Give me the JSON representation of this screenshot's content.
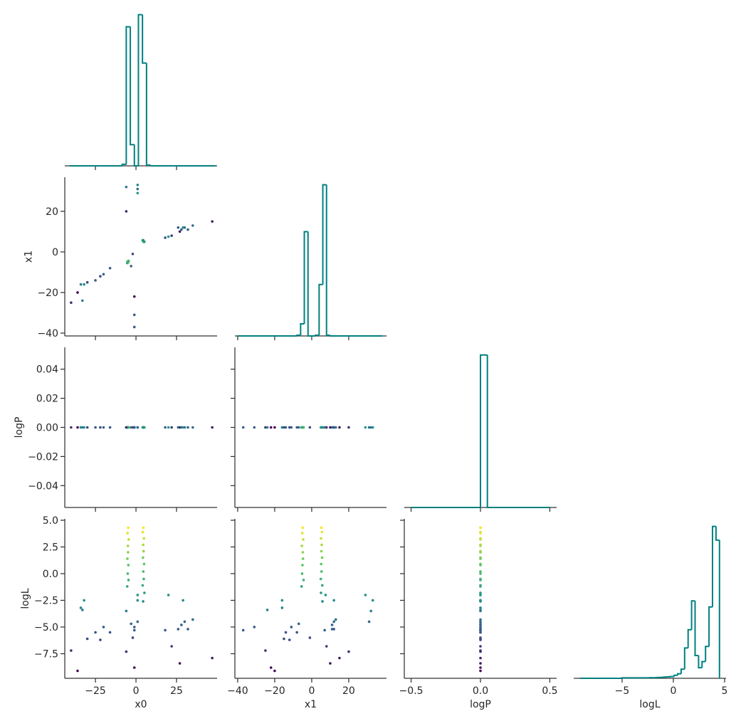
{
  "chart_data": [
    {
      "type": "histogram",
      "color": "#008080",
      "bins": [
        -41,
        -38.5,
        -36,
        -33.5,
        -31,
        -28.5,
        -26,
        -23.5,
        -21,
        -18.5,
        -16,
        -13.5,
        -11,
        -8.5,
        -6,
        -3.5,
        -1,
        1.5,
        4,
        6.5,
        9,
        11.5,
        14,
        16.5,
        19,
        21.5,
        24,
        26.5,
        29,
        31.5,
        34,
        36.5,
        39,
        41.5,
        44,
        46.5,
        49
      ],
      "values": [
        0,
        0,
        0,
        0,
        0,
        0,
        0,
        0,
        0,
        0,
        0,
        0,
        0,
        0.01,
        0.92,
        0.14,
        0,
        1.0,
        0.68,
        0.005,
        0,
        0,
        0,
        0,
        0,
        0,
        0,
        0,
        0,
        0,
        0,
        0,
        0,
        0,
        0,
        0
      ],
      "xlim": [
        -43.9,
        50
      ],
      "ylim": [
        0,
        1.05
      ],
      "xticks": [
        -25,
        0,
        25
      ],
      "xtick_labels": false
    },
    {
      "type": "scatter",
      "cmap": [
        "#440154",
        "#3b528b",
        "#21918c",
        "#5ec962",
        "#fde725"
      ],
      "clim": [
        -9.1,
        4.4
      ],
      "x": [
        -4.8,
        -5.2,
        -4.5,
        -5.0,
        -4.9,
        -5.3,
        -4.7,
        -5.1,
        -4.6,
        -5.4,
        4.6,
        4.2,
        4.9,
        4.4,
        4.7,
        4.3,
        5.0,
        4.5,
        4.8,
        4.1,
        5.2,
        4.4,
        -40,
        -36,
        -34,
        -33,
        -32,
        -30,
        -25,
        -22,
        -20,
        -16,
        -6,
        -6,
        -1,
        1,
        1,
        -1,
        -1,
        1,
        -2,
        -3,
        18,
        20,
        22,
        27,
        28,
        30,
        32,
        35,
        47,
        29,
        26
      ],
      "y": [
        -4.9,
        -5.1,
        -4.6,
        -5.3,
        -4.8,
        -4.7,
        -5.0,
        -5.2,
        -4.4,
        -5.5,
        5.2,
        5.5,
        5.0,
        5.4,
        5.2,
        5.6,
        5.1,
        5.3,
        4.9,
        5.7,
        5.0,
        5.8,
        -25,
        -20,
        -16,
        -24,
        -16,
        -15,
        -14,
        -12,
        -11,
        -8,
        32,
        20,
        -22,
        29,
        33,
        -31,
        -37,
        31,
        -1,
        -7,
        7,
        7.5,
        8,
        10,
        11,
        12,
        11,
        13,
        15,
        12,
        12
      ],
      "c": [
        4.3,
        3.8,
        3.2,
        2.6,
        2.0,
        1.4,
        0.8,
        0.0,
        -0.6,
        -1.2,
        4.3,
        3.9,
        3.3,
        2.7,
        2.1,
        1.5,
        0.9,
        0.2,
        -0.5,
        -1.1,
        -1.8,
        -2.6,
        -7.2,
        -9.1,
        -3.2,
        -3.4,
        -2.5,
        -6.1,
        -5.5,
        -6.2,
        -5.0,
        -5.5,
        -3.5,
        -7.3,
        -8.8,
        -2.0,
        -2.5,
        -5.0,
        -5.3,
        -4.5,
        -6.0,
        -4.7,
        -5.3,
        -2.0,
        -6.8,
        -8.4,
        -4.8,
        -4.5,
        -5.2,
        -4.3,
        -7.9,
        -2.5,
        -5.2
      ],
      "xlim": [
        -43.9,
        50
      ],
      "ylim": [
        -41.4,
        36.8
      ],
      "xticks": [
        -25,
        0,
        25
      ],
      "xtick_labels": false,
      "yticks": [
        20,
        0,
        {
          "value": -20,
          "label": "−20"
        },
        {
          "value": -40,
          "label": "−40"
        }
      ],
      "ytick_labels": true,
      "ylabel": "x1"
    },
    {
      "type": "histogram",
      "color": "#008080",
      "bins": [
        -40,
        -38,
        -36,
        -34,
        -32,
        -30,
        -28,
        -26,
        -24,
        -22,
        -20,
        -18,
        -16,
        -14,
        -12,
        -10,
        -8,
        -6,
        -4,
        -2,
        0,
        2,
        4,
        6,
        8,
        10,
        12,
        14,
        16,
        18,
        20,
        22,
        24,
        26,
        28,
        30,
        32,
        34,
        36,
        38
      ],
      "values": [
        0,
        0,
        0,
        0,
        0,
        0,
        0,
        0,
        0,
        0,
        0,
        0,
        0,
        0,
        0,
        0,
        0.005,
        0.08,
        0.69,
        0,
        0,
        0.005,
        0.34,
        1.0,
        0.005,
        0,
        0,
        0,
        0,
        0,
        0,
        0,
        0,
        0,
        0,
        0,
        0,
        0,
        0
      ],
      "xlim": [
        -41.5,
        40.4
      ],
      "ylim": [
        0,
        1.05
      ],
      "xticks": [
        -40,
        -20,
        0,
        20
      ],
      "xtick_labels": false
    },
    {
      "type": "scatter",
      "cmap": [
        "#440154",
        "#3b528b",
        "#21918c",
        "#5ec962",
        "#fde725"
      ],
      "clim": [
        -9.1,
        4.4
      ],
      "x": [
        -4.8,
        -5.2,
        -4.5,
        -5.0,
        -4.9,
        -5.3,
        -4.7,
        -5.1,
        -4.6,
        -5.4,
        4.6,
        4.2,
        4.9,
        4.4,
        4.7,
        4.3,
        5.0,
        4.5,
        4.8,
        4.1,
        5.2,
        4.4,
        -40,
        -36,
        -34,
        -33,
        -32,
        -30,
        -25,
        -22,
        -20,
        -16,
        -6,
        -6,
        -1,
        1,
        1,
        -1,
        -1,
        1,
        -2,
        -3,
        18,
        20,
        22,
        27,
        28,
        30,
        32,
        35,
        47,
        29,
        26
      ],
      "y": [
        0,
        0,
        0,
        0,
        0,
        0,
        0,
        0,
        0,
        0,
        0,
        0,
        0,
        0,
        0,
        0,
        0,
        0,
        0,
        0,
        0,
        0,
        0,
        0,
        0,
        0,
        0,
        0,
        0,
        0,
        0,
        0,
        0,
        0,
        0,
        0,
        0,
        0,
        0,
        0,
        0,
        0,
        0,
        0,
        0,
        0,
        0,
        0,
        0,
        0,
        0,
        0,
        0
      ],
      "c": [
        4.3,
        3.8,
        3.2,
        2.6,
        2.0,
        1.4,
        0.8,
        0.0,
        -0.6,
        -1.2,
        4.3,
        3.9,
        3.3,
        2.7,
        2.1,
        1.5,
        0.9,
        0.2,
        -0.5,
        -1.1,
        -1.8,
        -2.6,
        -7.2,
        -9.1,
        -3.2,
        -3.4,
        -2.5,
        -6.1,
        -5.5,
        -6.2,
        -5.0,
        -5.5,
        -3.5,
        -7.3,
        -8.8,
        -2.0,
        -2.5,
        -5.0,
        -5.3,
        -4.5,
        -6.0,
        -4.7,
        -5.3,
        -2.0,
        -6.8,
        -8.4,
        -4.8,
        -4.5,
        -5.2,
        -4.3,
        -7.9,
        -2.5,
        -5.2
      ],
      "xlim": [
        -43.9,
        50
      ],
      "ylim": [
        -0.055,
        0.055
      ],
      "xticks": [
        -25,
        0,
        25
      ],
      "xtick_labels": false,
      "yticks": [
        0.04,
        0.02,
        {
          "value": 0,
          "label": "0.00"
        },
        {
          "value": -0.02,
          "label": "−0.02"
        },
        {
          "value": -0.04,
          "label": "−0.04"
        }
      ],
      "ytick_labels": true,
      "ylabel": "logP"
    },
    {
      "type": "scatter",
      "cmap": [
        "#440154",
        "#3b528b",
        "#21918c",
        "#5ec962",
        "#fde725"
      ],
      "clim": [
        -9.1,
        4.4
      ],
      "x": [
        -4.9,
        -5.1,
        -4.6,
        -5.3,
        -4.8,
        -4.7,
        -5.0,
        -5.2,
        -4.4,
        -5.5,
        5.2,
        5.5,
        5.0,
        5.4,
        5.2,
        5.6,
        5.1,
        5.3,
        4.9,
        5.7,
        5.0,
        5.8,
        -25,
        -20,
        -16,
        -24,
        -16,
        -15,
        -14,
        -12,
        -11,
        -8,
        32,
        20,
        -22,
        29,
        33,
        -31,
        -37,
        31,
        -1,
        -7,
        7,
        7.5,
        8,
        10,
        11,
        12,
        11,
        13,
        15,
        12,
        12
      ],
      "y": [
        0,
        0,
        0,
        0,
        0,
        0,
        0,
        0,
        0,
        0,
        0,
        0,
        0,
        0,
        0,
        0,
        0,
        0,
        0,
        0,
        0,
        0,
        0,
        0,
        0,
        0,
        0,
        0,
        0,
        0,
        0,
        0,
        0,
        0,
        0,
        0,
        0,
        0,
        0,
        0,
        0,
        0,
        0,
        0,
        0,
        0,
        0,
        0,
        0,
        0,
        0,
        0,
        0
      ],
      "c": [
        4.3,
        3.8,
        3.2,
        2.6,
        2.0,
        1.4,
        0.8,
        0.0,
        -0.6,
        -1.2,
        4.3,
        3.9,
        3.3,
        2.7,
        2.1,
        1.5,
        0.9,
        0.2,
        -0.5,
        -1.1,
        -1.8,
        -2.6,
        -7.2,
        -9.1,
        -3.2,
        -3.4,
        -2.5,
        -6.1,
        -5.5,
        -6.2,
        -5.0,
        -5.5,
        -3.5,
        -7.3,
        -8.8,
        -2.0,
        -2.5,
        -5.0,
        -5.3,
        -4.5,
        -6.0,
        -4.7,
        -5.3,
        -2.0,
        -6.8,
        -8.4,
        -4.8,
        -4.5,
        -5.2,
        -4.3,
        -7.9,
        -2.5,
        -5.2
      ],
      "xlim": [
        -41.5,
        40.4
      ],
      "ylim": [
        -0.055,
        0.055
      ],
      "xticks": [
        -40,
        -20,
        0,
        20
      ],
      "xtick_labels": false,
      "yticks": [
        0.04,
        0.02,
        0,
        -0.02,
        -0.04
      ],
      "ytick_labels": false
    },
    {
      "type": "histogram",
      "color": "#008080",
      "bins": [
        -0.5,
        -0.45,
        -0.4,
        -0.35,
        -0.3,
        -0.25,
        -0.2,
        -0.15,
        -0.1,
        -0.05,
        0,
        0.05,
        0.1,
        0.15,
        0.2,
        0.25,
        0.3,
        0.35,
        0.4,
        0.45,
        0.5
      ],
      "values": [
        0,
        0,
        0,
        0,
        0,
        0,
        0,
        0,
        0,
        0,
        1.0,
        0,
        0,
        0,
        0,
        0,
        0,
        0,
        0,
        0
      ],
      "xlim": [
        -0.549,
        0.549
      ],
      "ylim": [
        0,
        1.05
      ],
      "xticks": [
        -0.5,
        0,
        0.5
      ],
      "xtick_labels": false
    },
    {
      "type": "scatter",
      "cmap": [
        "#440154",
        "#3b528b",
        "#21918c",
        "#5ec962",
        "#fde725"
      ],
      "clim": [
        -9.1,
        4.4
      ],
      "color_by": "y",
      "x": [
        -4.8,
        -5.2,
        -4.5,
        -5.0,
        -4.9,
        -5.3,
        -4.7,
        -5.1,
        -4.6,
        -5.4,
        4.6,
        4.2,
        4.9,
        4.4,
        4.7,
        4.3,
        5.0,
        4.5,
        4.8,
        4.1,
        5.2,
        4.4,
        -40,
        -36,
        -34,
        -33,
        -32,
        -30,
        -25,
        -22,
        -20,
        -16,
        -6,
        -6,
        -1,
        1,
        1,
        -1,
        -1,
        1,
        -2,
        -3,
        18,
        20,
        22,
        27,
        28,
        30,
        32,
        35,
        47,
        29,
        26
      ],
      "y": [
        4.3,
        3.8,
        3.2,
        2.6,
        2.0,
        1.4,
        0.8,
        0.0,
        -0.6,
        -1.2,
        4.3,
        3.9,
        3.3,
        2.7,
        2.1,
        1.5,
        0.9,
        0.2,
        -0.5,
        -1.1,
        -1.8,
        -2.6,
        -7.2,
        -9.1,
        -3.2,
        -3.4,
        -2.5,
        -6.1,
        -5.5,
        -6.2,
        -5.0,
        -5.5,
        -3.5,
        -7.3,
        -8.8,
        -2.0,
        -2.5,
        -5.0,
        -5.3,
        -4.5,
        -6.0,
        -4.7,
        -5.3,
        -2.0,
        -6.8,
        -8.4,
        -4.8,
        -4.5,
        -5.2,
        -4.3,
        -7.9,
        -2.5,
        -5.2
      ],
      "xlim": [
        -43.9,
        50
      ],
      "ylim": [
        -9.8,
        5.13
      ],
      "xticks": [
        {
          "value": -25,
          "label": "−25"
        },
        0,
        25
      ],
      "xtick_labels": true,
      "yticks": [
        {
          "value": 5,
          "label": "5.0"
        },
        2.5,
        {
          "value": 0,
          "label": "0.0"
        },
        {
          "value": -2.5,
          "label": "−2.5"
        },
        {
          "value": -5,
          "label": "−5.0"
        },
        {
          "value": -7.5,
          "label": "−7.5"
        }
      ],
      "ytick_labels": true,
      "xlabel": "x0",
      "ylabel": "logL"
    },
    {
      "type": "scatter",
      "cmap": [
        "#440154",
        "#3b528b",
        "#21918c",
        "#5ec962",
        "#fde725"
      ],
      "clim": [
        -9.1,
        4.4
      ],
      "color_by": "y",
      "x": [
        -4.9,
        -5.1,
        -4.6,
        -5.3,
        -4.8,
        -4.7,
        -5.0,
        -5.2,
        -4.4,
        -5.5,
        5.2,
        5.5,
        5.0,
        5.4,
        5.2,
        5.6,
        5.1,
        5.3,
        4.9,
        5.7,
        5.0,
        5.8,
        -25,
        -20,
        -16,
        -24,
        -16,
        -15,
        -14,
        -12,
        -11,
        -8,
        32,
        20,
        -22,
        29,
        33,
        -31,
        -37,
        31,
        -1,
        -7,
        7,
        7.5,
        8,
        10,
        11,
        12,
        11,
        13,
        15,
        12,
        12
      ],
      "y": [
        4.3,
        3.8,
        3.2,
        2.6,
        2.0,
        1.4,
        0.8,
        0.0,
        -0.6,
        -1.2,
        4.3,
        3.9,
        3.3,
        2.7,
        2.1,
        1.5,
        0.9,
        0.2,
        -0.5,
        -1.1,
        -1.8,
        -2.6,
        -7.2,
        -9.1,
        -3.2,
        -3.4,
        -2.5,
        -6.1,
        -5.5,
        -6.2,
        -5.0,
        -5.5,
        -3.5,
        -7.3,
        -8.8,
        -2.0,
        -2.5,
        -5.0,
        -5.3,
        -4.5,
        -6.0,
        -4.7,
        -5.3,
        -2.0,
        -6.8,
        -8.4,
        -4.8,
        -4.5,
        -5.2,
        -4.3,
        -7.9,
        -2.5,
        -5.2
      ],
      "xlim": [
        -41.5,
        40.4
      ],
      "ylim": [
        -9.8,
        5.13
      ],
      "xticks": [
        {
          "value": -40,
          "label": "−40"
        },
        {
          "value": -20,
          "label": "−20"
        },
        0,
        20
      ],
      "xtick_labels": true,
      "yticks": [
        5,
        2.5,
        0,
        -2.5,
        -5,
        -7.5
      ],
      "ytick_labels": false,
      "xlabel": "x1"
    },
    {
      "type": "scatter",
      "cmap": [
        "#440154",
        "#3b528b",
        "#21918c",
        "#5ec962",
        "#fde725"
      ],
      "clim": [
        -9.1,
        4.4
      ],
      "color_by": "y",
      "x": [
        0,
        0,
        0,
        0,
        0,
        0,
        0,
        0,
        0,
        0,
        0,
        0,
        0,
        0,
        0,
        0,
        0,
        0,
        0,
        0,
        0,
        0,
        0,
        0,
        0,
        0,
        0,
        0,
        0,
        0,
        0,
        0,
        0,
        0,
        0,
        0,
        0,
        0,
        0,
        0,
        0,
        0,
        0,
        0,
        0,
        0,
        0,
        0,
        0,
        0,
        0,
        0,
        0
      ],
      "y": [
        4.3,
        3.8,
        3.2,
        2.6,
        2.0,
        1.4,
        0.8,
        0.0,
        -0.6,
        -1.2,
        4.3,
        3.9,
        3.3,
        2.7,
        2.1,
        1.5,
        0.9,
        0.2,
        -0.5,
        -1.1,
        -1.8,
        -2.6,
        -7.2,
        -9.1,
        -3.2,
        -3.4,
        -2.5,
        -6.1,
        -5.5,
        -6.2,
        -5.0,
        -5.5,
        -3.5,
        -7.3,
        -8.8,
        -2.0,
        -2.5,
        -5.0,
        -5.3,
        -4.5,
        -6.0,
        -4.7,
        -5.3,
        -2.0,
        -6.8,
        -8.4,
        -4.8,
        -4.5,
        -5.2,
        -4.3,
        -7.9,
        -2.5,
        -5.2
      ],
      "xlim": [
        -0.549,
        0.549
      ],
      "ylim": [
        -9.8,
        5.13
      ],
      "xticks": [
        {
          "value": -0.5,
          "label": "−0.5"
        },
        {
          "value": 0,
          "label": "0.0"
        },
        0.5
      ],
      "xtick_labels": true,
      "yticks": [
        5,
        2.5,
        0,
        -2.5,
        -5,
        -7.5
      ],
      "ytick_labels": false,
      "xlabel": "logP"
    },
    {
      "type": "histogram",
      "color": "#008080",
      "bins": [
        -9.1,
        -8.76,
        -8.42,
        -8.08,
        -7.74,
        -7.4,
        -7.06,
        -6.72,
        -6.38,
        -6.04,
        -5.7,
        -5.36,
        -5.02,
        -4.68,
        -4.34,
        -4.0,
        -3.66,
        -3.32,
        -2.98,
        -2.64,
        -2.3,
        -1.96,
        -1.62,
        -1.28,
        -0.94,
        -0.6,
        -0.26,
        0.08,
        0.42,
        0.76,
        1.1,
        1.44,
        1.78,
        2.12,
        2.46,
        2.8,
        3.14,
        3.48,
        3.82,
        4.16,
        4.5
      ],
      "values": [
        0,
        0,
        0,
        0,
        0,
        0,
        0,
        0,
        0,
        0,
        0,
        0,
        0.003,
        0.003,
        0.003,
        0.003,
        0.003,
        0.003,
        0.003,
        0.003,
        0.004,
        0.004,
        0.005,
        0.006,
        0.008,
        0.01,
        0.012,
        0.02,
        0.03,
        0.06,
        0.2,
        0.32,
        0.51,
        0.15,
        0.07,
        0.11,
        0.21,
        0.47,
        1.0,
        0.91
      ],
      "xlim": [
        -9.72,
        5.14
      ],
      "ylim": [
        0,
        1.05
      ],
      "xticks": [
        {
          "value": -5,
          "label": "−5"
        },
        0,
        5
      ],
      "xtick_labels": true,
      "xlabel": "logL"
    }
  ]
}
